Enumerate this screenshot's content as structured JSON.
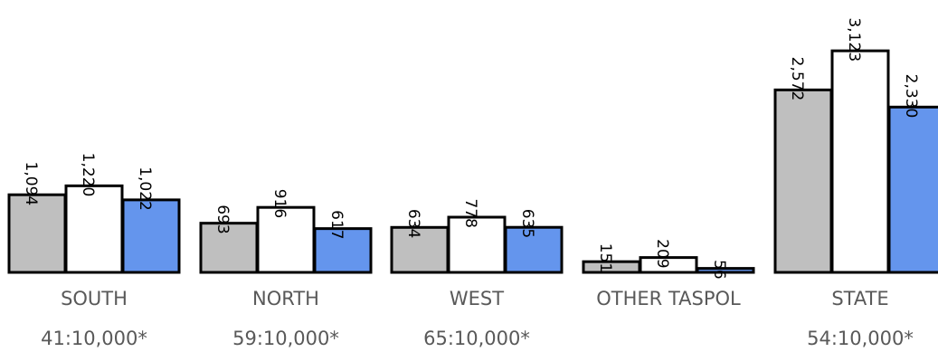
{
  "chart_data": {
    "type": "bar",
    "title": "",
    "xlabel": "",
    "ylabel": "",
    "grid": false,
    "categories": [
      "SOUTH",
      "NORTH",
      "WEST",
      "OTHER TASPOL",
      "STATE"
    ],
    "ratios": [
      "41:10,000*",
      "59:10,000*",
      "65:10,000*",
      "",
      "54:10,000*"
    ],
    "series": [
      {
        "color": "#bfbfbf",
        "values": [
          1094,
          693,
          634,
          151,
          2572
        ],
        "labels": [
          "1,094",
          "693",
          "634",
          "151",
          "2,572"
        ]
      },
      {
        "color": "#ffffff",
        "values": [
          1220,
          916,
          778,
          209,
          3123
        ],
        "labels": [
          "1,220",
          "916",
          "778",
          "209",
          "3,123"
        ]
      },
      {
        "color": "#6495ed",
        "values": [
          1022,
          617,
          635,
          56,
          2330
        ],
        "labels": [
          "1,022",
          "617",
          "635",
          "56",
          "2,330"
        ]
      }
    ]
  }
}
